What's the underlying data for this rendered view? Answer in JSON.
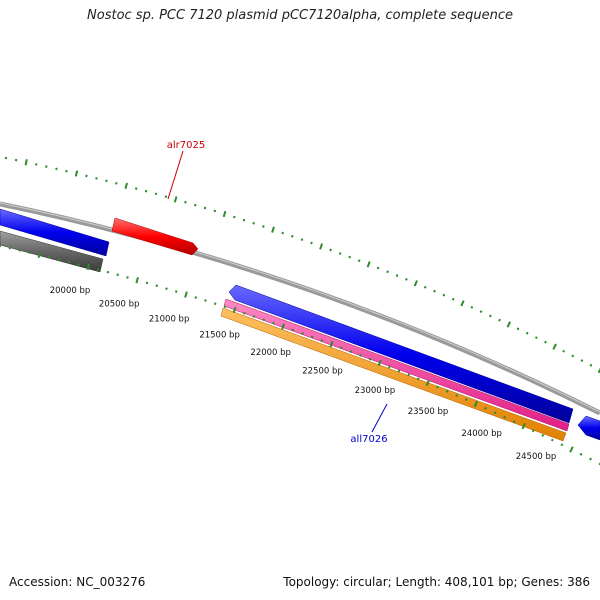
{
  "title": "Nostoc sp. PCC 7120 plasmid pCC7120alpha, complete sequence",
  "footer": {
    "accession": "Accession: NC_003276",
    "summary": "Topology: circular; Length: 408,101 bp; Genes: 386"
  },
  "colors": {
    "tick": "#2e8b2e",
    "backbone": "#8c8c8c",
    "label_red": "#cc0000",
    "label_blue": "#0000cc",
    "blue_feature": "#0000ee",
    "red_feature": "#ff0000",
    "gray_feature": "#666666",
    "pink_feature": "#ff3399",
    "orange_feature": "#ff9900"
  },
  "scale_labels": [
    "20000 bp",
    "20500 bp",
    "21000 bp",
    "21500 bp",
    "22000 bp",
    "22500 bp",
    "23000 bp",
    "23500 bp",
    "24000 bp",
    "24500 bp"
  ],
  "gene_labels": [
    {
      "text": "alr7025",
      "color": "label_red"
    },
    {
      "text": "all7026",
      "color": "label_blue"
    }
  ]
}
